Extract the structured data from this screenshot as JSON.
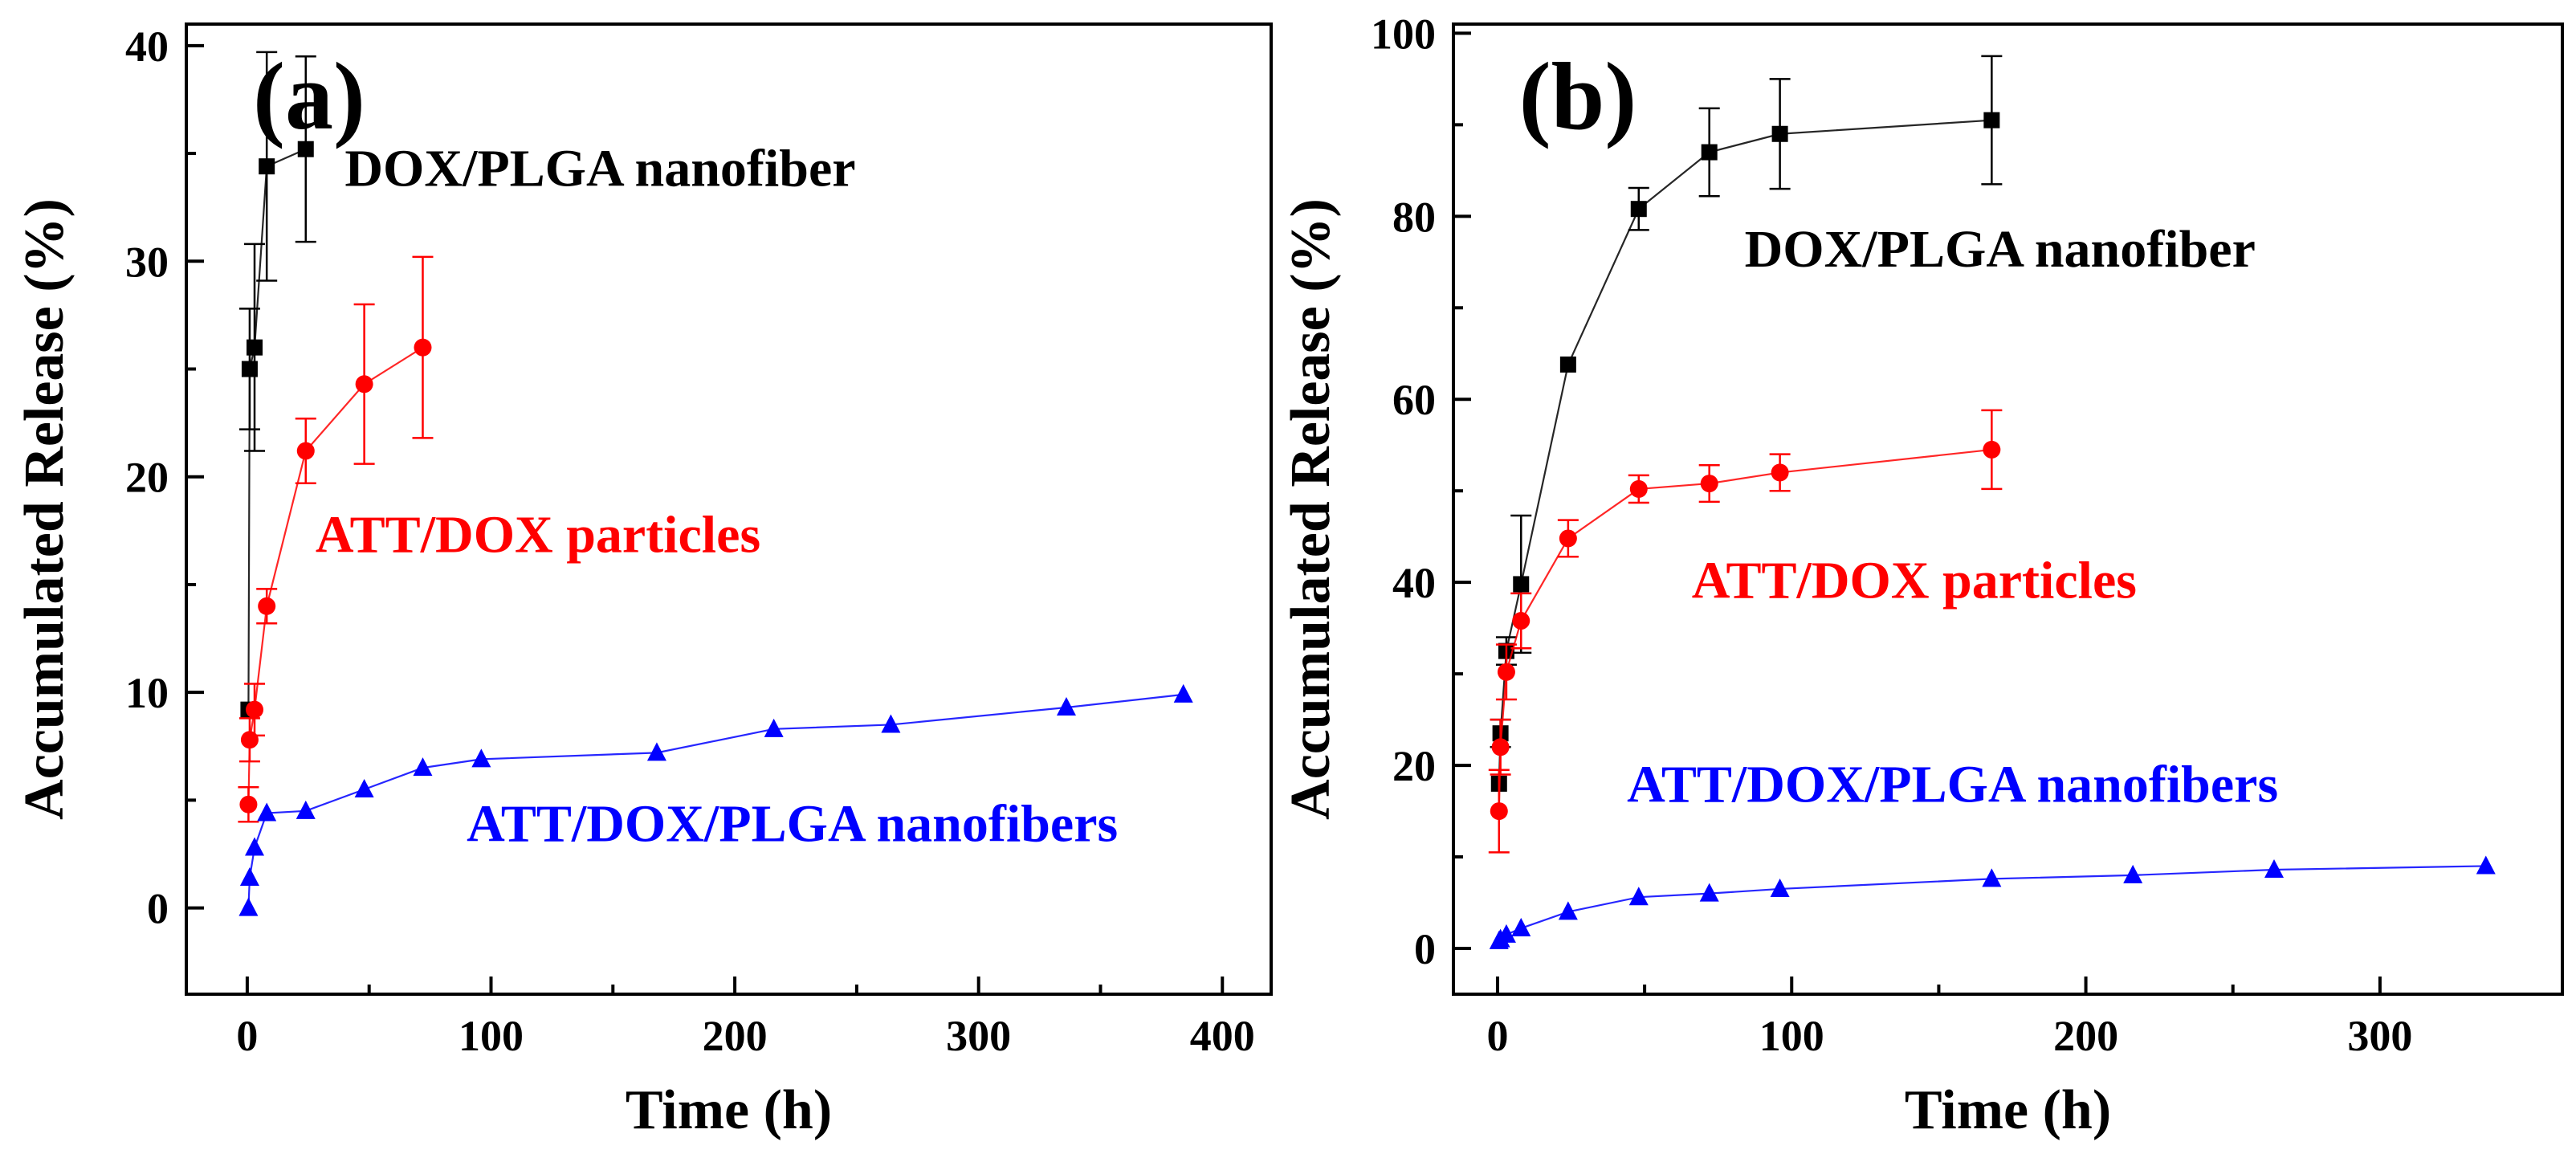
{
  "colors": {
    "nanofiber": "#000000",
    "particles": "#ff0000",
    "att_nanofibers": "#0000ff",
    "frame": "#000000"
  },
  "chart_data": [
    {
      "type": "line",
      "panel_label": "(a)",
      "title": "",
      "xlabel": "Time (h)",
      "ylabel": "Accumulated Release (%)",
      "xlim": [
        -25,
        420
      ],
      "ylim": [
        -4,
        41
      ],
      "xticks": [
        0,
        100,
        200,
        300,
        400
      ],
      "yticks": [
        0,
        10,
        20,
        30,
        40
      ],
      "xtick_labels": [
        "0",
        "100",
        "200",
        "300",
        "400"
      ],
      "ytick_labels": [
        "0",
        "10",
        "20",
        "30",
        "40"
      ],
      "grid": false,
      "series": [
        {
          "name": "DOX/PLGA nanofiber",
          "color": "#000000",
          "marker": "square",
          "label_anchor": {
            "x": 40,
            "y": 33.5
          },
          "points": [
            {
              "x": 0.5,
              "y": 9.2,
              "err": 0
            },
            {
              "x": 1,
              "y": 25.0,
              "err": 2.8
            },
            {
              "x": 3,
              "y": 26.0,
              "err": 4.8
            },
            {
              "x": 8,
              "y": 34.4,
              "err": 5.3
            },
            {
              "x": 24,
              "y": 35.2,
              "err": 4.3
            }
          ]
        },
        {
          "name": "ATT/DOX particles",
          "color": "#ff0000",
          "marker": "circle",
          "label_anchor": {
            "x": 28,
            "y": 16.5
          },
          "points": [
            {
              "x": 0.5,
              "y": 4.8,
              "err": 0.8
            },
            {
              "x": 1,
              "y": 7.8,
              "err": 1.0
            },
            {
              "x": 3,
              "y": 9.2,
              "err": 1.2
            },
            {
              "x": 8,
              "y": 14.0,
              "err": 0.8
            },
            {
              "x": 24,
              "y": 21.2,
              "err": 1.5
            },
            {
              "x": 48,
              "y": 24.3,
              "err": 3.7
            },
            {
              "x": 72,
              "y": 26.0,
              "err": 4.2
            }
          ]
        },
        {
          "name": "ATT/DOX/PLGA nanofibers",
          "color": "#0000ff",
          "marker": "triangle",
          "label_anchor": {
            "x": 90,
            "y": 3.1
          },
          "points": [
            {
              "x": 0.5,
              "y": 0.0,
              "err": 0
            },
            {
              "x": 1,
              "y": 1.4,
              "err": 0
            },
            {
              "x": 3,
              "y": 2.8,
              "err": 0
            },
            {
              "x": 8,
              "y": 4.4,
              "err": 0
            },
            {
              "x": 24,
              "y": 4.5,
              "err": 0
            },
            {
              "x": 48,
              "y": 5.5,
              "err": 0
            },
            {
              "x": 72,
              "y": 6.5,
              "err": 0
            },
            {
              "x": 96,
              "y": 6.9,
              "err": 0
            },
            {
              "x": 168,
              "y": 7.2,
              "err": 0
            },
            {
              "x": 216,
              "y": 8.3,
              "err": 0
            },
            {
              "x": 264,
              "y": 8.5,
              "err": 0
            },
            {
              "x": 336,
              "y": 9.3,
              "err": 0
            },
            {
              "x": 384,
              "y": 9.9,
              "err": 0
            }
          ]
        }
      ]
    },
    {
      "type": "line",
      "panel_label": "(b)",
      "title": "",
      "xlabel": "Time (h)",
      "ylabel": "Accumulated Release (%)",
      "xlim": [
        -15,
        362
      ],
      "ylim": [
        -5,
        101
      ],
      "xticks": [
        0,
        100,
        200,
        300
      ],
      "yticks": [
        0,
        20,
        40,
        60,
        80,
        100
      ],
      "xtick_labels": [
        "0",
        "100",
        "200",
        "300"
      ],
      "ytick_labels": [
        "0",
        "20",
        "40",
        "60",
        "80",
        "100"
      ],
      "grid": false,
      "series": [
        {
          "name": "DOX/PLGA nanofiber",
          "color": "#000000",
          "marker": "square",
          "label_anchor": {
            "x": 84,
            "y": 74.5
          },
          "points": [
            {
              "x": 0.5,
              "y": 18.0,
              "err": 0
            },
            {
              "x": 1,
              "y": 23.5,
              "err": 1.5
            },
            {
              "x": 3,
              "y": 32.5,
              "err": 1.5
            },
            {
              "x": 8,
              "y": 39.8,
              "err": 7.5
            },
            {
              "x": 24,
              "y": 63.8,
              "err": 0
            },
            {
              "x": 48,
              "y": 80.8,
              "err": 2.3
            },
            {
              "x": 72,
              "y": 87.0,
              "err": 4.8
            },
            {
              "x": 96,
              "y": 89.0,
              "err": 6.0
            },
            {
              "x": 168,
              "y": 90.5,
              "err": 7.0
            }
          ]
        },
        {
          "name": "ATT/DOX particles",
          "color": "#ff0000",
          "marker": "circle",
          "label_anchor": {
            "x": 66,
            "y": 38.3
          },
          "points": [
            {
              "x": 0.5,
              "y": 15.0,
              "err": 4.5
            },
            {
              "x": 1,
              "y": 22.0,
              "err": 3.0
            },
            {
              "x": 3,
              "y": 30.2,
              "err": 3.0
            },
            {
              "x": 8,
              "y": 35.8,
              "err": 3.0
            },
            {
              "x": 24,
              "y": 44.8,
              "err": 2.0
            },
            {
              "x": 48,
              "y": 50.2,
              "err": 1.5
            },
            {
              "x": 72,
              "y": 50.8,
              "err": 2.0
            },
            {
              "x": 96,
              "y": 52.0,
              "err": 2.0
            },
            {
              "x": 168,
              "y": 54.5,
              "err": 4.3
            }
          ]
        },
        {
          "name": "ATT/DOX/PLGA nanofibers",
          "color": "#0000ff",
          "marker": "triangle",
          "label_anchor": {
            "x": 44,
            "y": 16.0
          },
          "points": [
            {
              "x": 0.5,
              "y": 0.8,
              "err": 0
            },
            {
              "x": 1,
              "y": 1.0,
              "err": 0
            },
            {
              "x": 3,
              "y": 1.5,
              "err": 0
            },
            {
              "x": 8,
              "y": 2.2,
              "err": 0
            },
            {
              "x": 24,
              "y": 4.0,
              "err": 0
            },
            {
              "x": 48,
              "y": 5.6,
              "err": 0
            },
            {
              "x": 72,
              "y": 6.0,
              "err": 0
            },
            {
              "x": 96,
              "y": 6.5,
              "err": 0
            },
            {
              "x": 168,
              "y": 7.6,
              "err": 0
            },
            {
              "x": 216,
              "y": 8.0,
              "err": 0
            },
            {
              "x": 264,
              "y": 8.6,
              "err": 0
            },
            {
              "x": 336,
              "y": 9.0,
              "err": 0
            }
          ]
        }
      ]
    }
  ]
}
